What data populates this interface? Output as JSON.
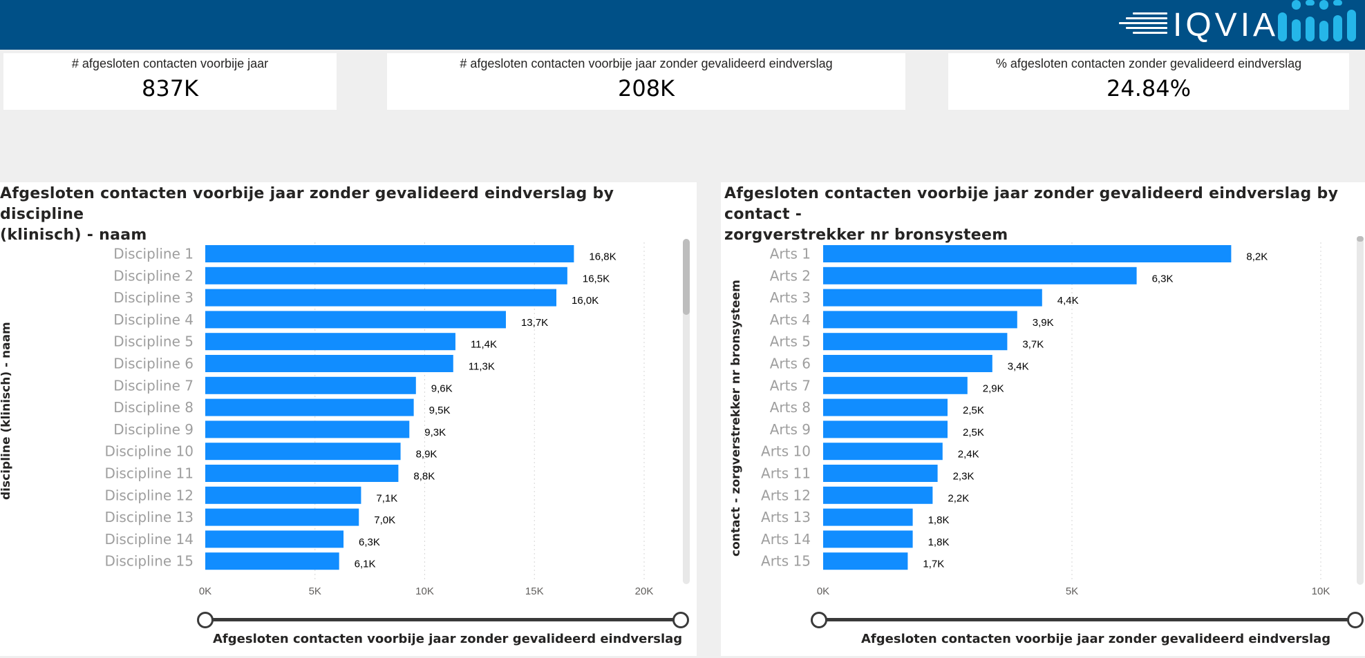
{
  "header": {
    "logo_text": "IQVIA",
    "bar_color": "#005087",
    "accent_color": "#25b6e9"
  },
  "kpis": [
    {
      "label": "# afgesloten contacten voorbije jaar",
      "value": "837K"
    },
    {
      "label": "# afgesloten contacten voorbije jaar zonder gevalideerd eindverslag",
      "value": "208K"
    },
    {
      "label": "% afgesloten contacten zonder gevalideerd eindverslag",
      "value": "24.84%"
    }
  ],
  "chart_data": [
    {
      "type": "bar",
      "orientation": "horizontal",
      "title": "Afgesloten contacten voorbije jaar zonder gevalideerd eindverslag by discipline (klinisch) - naam",
      "title_lines": [
        "Afgesloten contacten voorbije jaar zonder gevalideerd eindverslag by discipline",
        "(klinisch) - naam"
      ],
      "ylabel": "discipline (klinisch) - naam",
      "xlabel": "Afgesloten contacten voorbije jaar zonder gevalideerd eindverslag",
      "categories": [
        "Discipline 1",
        "Discipline 2",
        "Discipline 3",
        "Discipline 4",
        "Discipline 5",
        "Discipline 6",
        "Discipline 7",
        "Discipline 8",
        "Discipline 9",
        "Discipline 10",
        "Discipline 11",
        "Discipline 12",
        "Discipline 13",
        "Discipline 14",
        "Discipline 15"
      ],
      "values": [
        16800,
        16500,
        16000,
        13700,
        11400,
        11300,
        9600,
        9500,
        9300,
        8900,
        8800,
        7100,
        7000,
        6300,
        6100
      ],
      "data_labels": [
        "16,8K",
        "16,5K",
        "16,0K",
        "13,7K",
        "11,4K",
        "11,3K",
        "9,6K",
        "9,5K",
        "9,3K",
        "8,9K",
        "8,8K",
        "7,1K",
        "7,0K",
        "6,3K",
        "6,1K"
      ],
      "xticks": [
        0,
        5000,
        10000,
        15000,
        20000
      ],
      "xtick_labels": [
        "0K",
        "5K",
        "10K",
        "15K",
        "20K"
      ],
      "xlim": [
        0,
        20000
      ],
      "bar_color": "#118dff",
      "grid": true
    },
    {
      "type": "bar",
      "orientation": "horizontal",
      "title": "Afgesloten contacten voorbije jaar zonder gevalideerd eindverslag by contact - zorgverstrekker nr bronsysteem",
      "title_lines": [
        "Afgesloten contacten voorbije jaar zonder gevalideerd eindverslag by contact -",
        "zorgverstrekker nr bronsysteem"
      ],
      "ylabel": "contact - zorgverstrekker nr bronsysteem",
      "xlabel": "Afgesloten contacten voorbije jaar zonder gevalideerd eindverslag",
      "categories": [
        "Arts 1",
        "Arts 2",
        "Arts 3",
        "Arts 4",
        "Arts 5",
        "Arts 6",
        "Arts 7",
        "Arts 8",
        "Arts 9",
        "Arts 10",
        "Arts 11",
        "Arts 12",
        "Arts 13",
        "Arts 14",
        "Arts 15"
      ],
      "values": [
        8200,
        6300,
        4400,
        3900,
        3700,
        3400,
        2900,
        2500,
        2500,
        2400,
        2300,
        2200,
        1800,
        1800,
        1700
      ],
      "data_labels": [
        "8,2K",
        "6,3K",
        "4,4K",
        "3,9K",
        "3,7K",
        "3,4K",
        "2,9K",
        "2,5K",
        "2,5K",
        "2,4K",
        "2,3K",
        "2,2K",
        "1,8K",
        "1,8K",
        "1,7K"
      ],
      "xticks": [
        0,
        5000,
        10000
      ],
      "xtick_labels": [
        "0K",
        "5K",
        "10K"
      ],
      "xlim": [
        0,
        10000
      ],
      "bar_color": "#118dff",
      "grid": true
    }
  ]
}
